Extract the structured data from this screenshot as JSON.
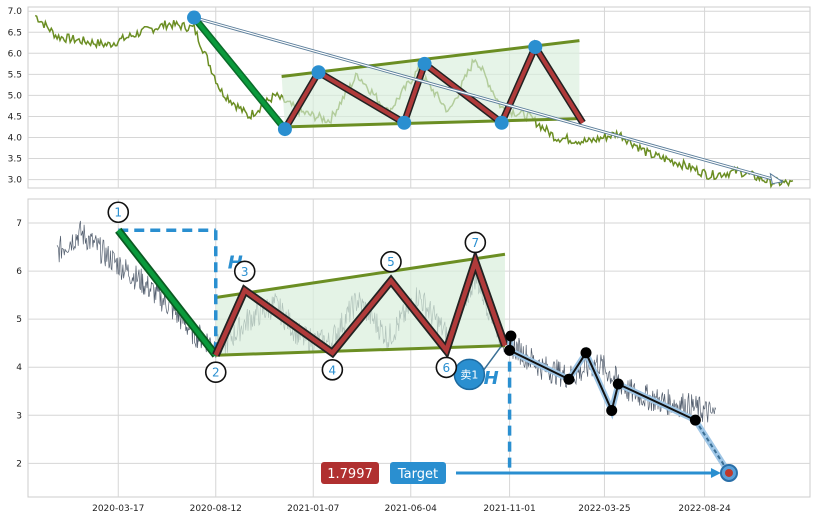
{
  "colors": {
    "top_price": "#6b8e23",
    "bottom_price": "#556070",
    "down_leg": "#0a9a3c",
    "zigzag": "#b03a3a",
    "trend_lines": "#6b8e23",
    "fill": "#d8eedc",
    "marker_blue": "#2a8fd0",
    "target_box": "#2a8fd0",
    "value_box": "#b03030",
    "guide": "#2a8fd0"
  },
  "chart_data": [
    {
      "type": "line",
      "name": "overview",
      "ylim": [
        2.8,
        7.1
      ],
      "y_ticks": [
        "7.0",
        "6.5",
        "6.0",
        "5.5",
        "5.0",
        "4.5",
        "4.0",
        "3.5",
        "3.0"
      ],
      "x_range": [
        "2019-11-01",
        "2023-01-31"
      ],
      "grid": true,
      "price_series": {
        "x": [
          "2019-11-12",
          "2019-12-15",
          "2020-01-20",
          "2020-03-01",
          "2020-04-20",
          "2020-06-01",
          "2020-07-10",
          "2020-08-20",
          "2020-10-01",
          "2020-11-10",
          "2020-12-20",
          "2021-02-01",
          "2021-03-15",
          "2021-05-01",
          "2021-06-15",
          "2021-08-01",
          "2021-09-10",
          "2021-10-20",
          "2021-11-30",
          "2022-01-10",
          "2022-03-01",
          "2022-04-15",
          "2022-06-01",
          "2022-07-15",
          "2022-09-01",
          "2022-10-15",
          "2022-12-01",
          "2023-01-05"
        ],
        "y": [
          6.9,
          6.4,
          6.3,
          6.2,
          6.5,
          6.7,
          6.6,
          5.1,
          4.5,
          5.0,
          4.6,
          4.4,
          5.5,
          4.6,
          5.6,
          4.6,
          5.9,
          4.7,
          4.5,
          4.0,
          3.9,
          4.1,
          3.6,
          3.4,
          3.1,
          3.2,
          2.95,
          2.9
        ]
      },
      "pattern_points": [
        {
          "x": "2020-07-10",
          "y": 6.85
        },
        {
          "x": "2020-11-25",
          "y": 4.2
        },
        {
          "x": "2021-01-15",
          "y": 5.55
        },
        {
          "x": "2021-05-25",
          "y": 4.35
        },
        {
          "x": "2021-06-25",
          "y": 5.75
        },
        {
          "x": "2021-10-20",
          "y": 4.35
        },
        {
          "x": "2021-12-10",
          "y": 6.15
        },
        {
          "x": "2022-02-20",
          "y": 4.35
        }
      ],
      "arrow": {
        "from": {
          "x": "2020-07-10",
          "y": 6.85
        },
        "to": {
          "x": "2022-12-20",
          "y": 2.95
        }
      }
    },
    {
      "type": "line",
      "name": "detail",
      "ylim": [
        1.3,
        7.5
      ],
      "y_ticks": [
        "7",
        "6",
        "5",
        "4",
        "3",
        "2"
      ],
      "x_range": [
        "2019-11-01",
        "2023-01-31"
      ],
      "x_ticks": [
        {
          "date": "2020-03-17",
          "label": "2020-03-17"
        },
        {
          "date": "2020-08-12",
          "label": "2020-08-12"
        },
        {
          "date": "2021-01-07",
          "label": "2021-01-07"
        },
        {
          "date": "2021-06-04",
          "label": "2021-06-04"
        },
        {
          "date": "2021-11-01",
          "label": "2021-11-01"
        },
        {
          "date": "2022-03-25",
          "label": "2022-03-25"
        },
        {
          "date": "2022-08-24",
          "label": "2022-08-24"
        }
      ],
      "grid": true,
      "price_series": {
        "x": [
          "2019-12-15",
          "2020-01-20",
          "2020-03-01",
          "2020-04-20",
          "2020-06-01",
          "2020-07-10",
          "2020-08-20",
          "2020-10-01",
          "2020-11-10",
          "2020-12-20",
          "2021-02-01",
          "2021-03-15",
          "2021-05-01",
          "2021-06-15",
          "2021-08-01",
          "2021-09-10",
          "2021-10-20",
          "2021-11-10",
          "2021-12-20",
          "2022-02-01",
          "2022-03-15",
          "2022-05-01",
          "2022-06-15",
          "2022-08-01",
          "2022-09-10"
        ],
        "y": [
          6.4,
          6.8,
          6.3,
          5.8,
          5.3,
          4.7,
          4.4,
          5.0,
          5.3,
          4.6,
          4.5,
          5.4,
          4.6,
          5.5,
          4.6,
          5.9,
          4.6,
          4.4,
          4.0,
          3.8,
          4.1,
          3.5,
          3.3,
          3.2,
          3.0
        ]
      },
      "pattern_points": [
        {
          "label": "1",
          "x": "2020-03-17",
          "y": 6.85
        },
        {
          "label": "2",
          "x": "2020-08-12",
          "y": 4.25
        },
        {
          "label": "3",
          "x": "2020-09-25",
          "y": 5.6
        },
        {
          "label": "4",
          "x": "2021-02-05",
          "y": 4.3
        },
        {
          "label": "5",
          "x": "2021-05-05",
          "y": 5.8
        },
        {
          "label": "6",
          "x": "2021-07-28",
          "y": 4.35
        },
        {
          "label": "7",
          "x": "2021-09-10",
          "y": 6.2
        },
        {
          "label": "",
          "x": "2021-10-25",
          "y": 4.45
        }
      ],
      "upper_line": {
        "from": {
          "x": "2020-08-12",
          "y": 5.45
        },
        "to": {
          "x": "2021-10-25",
          "y": 6.35
        }
      },
      "lower_line": {
        "from": {
          "x": "2020-08-12",
          "y": 4.25
        },
        "to": {
          "x": "2021-10-25",
          "y": 4.45
        }
      },
      "forecast_path": [
        {
          "x": "2021-10-25",
          "y": 4.45
        },
        {
          "x": "2021-11-03",
          "y": 4.65
        },
        {
          "x": "2021-11-01",
          "y": 4.35
        },
        {
          "x": "2022-01-30",
          "y": 3.75
        },
        {
          "x": "2022-02-25",
          "y": 4.3
        },
        {
          "x": "2022-04-05",
          "y": 3.1
        },
        {
          "x": "2022-04-15",
          "y": 3.65
        },
        {
          "x": "2022-08-10",
          "y": 2.9
        },
        {
          "x": "2022-09-30",
          "y": 1.8
        }
      ],
      "height_marker": "H",
      "sell_signal": {
        "label": "卖1",
        "x": "2021-09-01",
        "y": 3.85
      },
      "target": {
        "label": "Target",
        "value": "1.7997",
        "y": 1.8
      },
      "reference_level": {
        "y": 6.85,
        "x_to": "2020-08-12"
      }
    }
  ],
  "axes": {
    "top_y_labels": [
      "7.0",
      "6.5",
      "6.0",
      "5.5",
      "5.0",
      "4.5",
      "4.0",
      "3.5",
      "3.0"
    ],
    "bottom_y_labels": [
      "7",
      "6",
      "5",
      "4",
      "3",
      "2"
    ]
  }
}
